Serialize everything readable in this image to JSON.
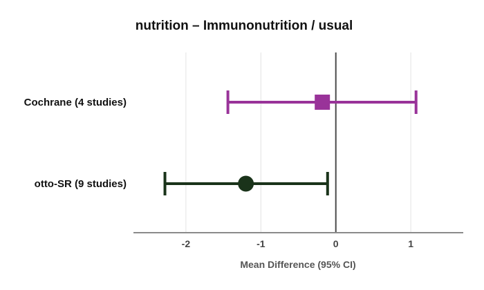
{
  "chart_data": {
    "type": "forest",
    "title": "nutrition – Immunonutrition / usual",
    "xlabel": "Mean Difference (95% CI)",
    "xlim": [
      -2.7,
      1.7
    ],
    "ticks": [
      {
        "value": -2,
        "label": "-2"
      },
      {
        "value": -1,
        "label": "-1"
      },
      {
        "value": 0,
        "label": "0"
      },
      {
        "value": 1,
        "label": "1"
      }
    ],
    "reference_line": 0,
    "grid": true,
    "series": [
      {
        "name": "Cochrane (4 studies)",
        "estimate": -0.18,
        "ci_low": -1.44,
        "ci_high": 1.07,
        "marker": "square",
        "color": "#993399"
      },
      {
        "name": "otto-SR (9 studies)",
        "estimate": -1.2,
        "ci_low": -2.28,
        "ci_high": -0.11,
        "marker": "circle",
        "color": "#1a331a"
      }
    ]
  }
}
